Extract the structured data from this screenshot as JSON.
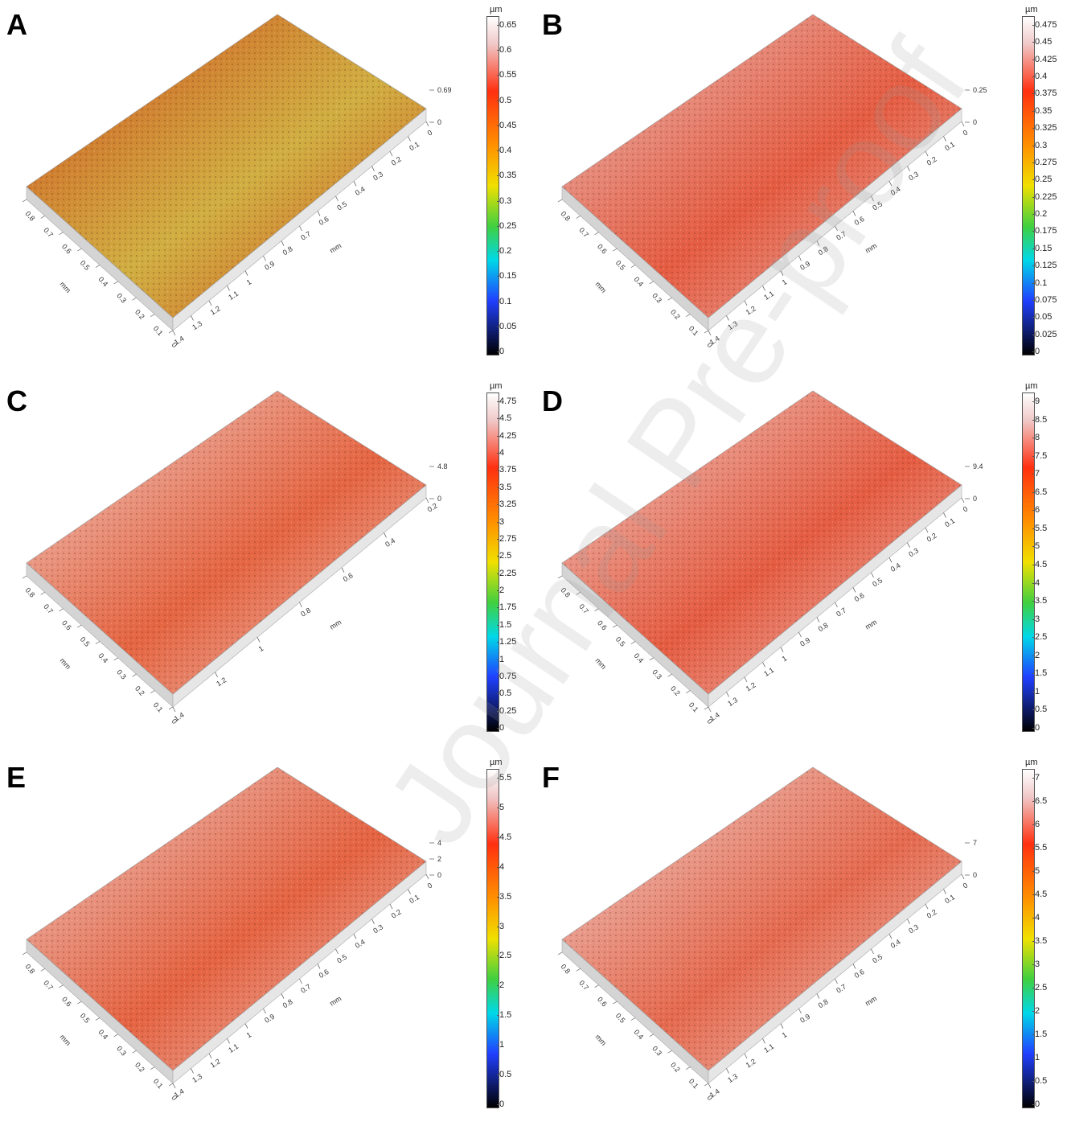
{
  "panels": [
    {
      "letter": "A",
      "unit": "µm",
      "colorbar_ticks": [
        "0.65",
        "0.6",
        "0.55",
        "0.5",
        "0.45",
        "0.4",
        "0.35",
        "0.3",
        "0.25",
        "0.2",
        "0.15",
        "0.1",
        "0.05",
        "0"
      ],
      "z_labels": [
        "0.69",
        "0"
      ],
      "x_ticks": [
        "0.8",
        "0.7",
        "0.6",
        "0.5",
        "0.4",
        "0.3",
        "0.2",
        "0.1",
        "0"
      ],
      "y_ticks": [
        "1.4",
        "1.3",
        "1.2",
        "1.1",
        "1",
        "0.9",
        "0.8",
        "0.7",
        "0.6",
        "0.5",
        "0.4",
        "0.3",
        "0.2",
        "0.1",
        "0"
      ],
      "x_unit": "mm",
      "y_unit": "mm",
      "surface_color": "#d0451c",
      "accent_color": "#c8a020"
    },
    {
      "letter": "B",
      "unit": "µm",
      "colorbar_ticks": [
        "0.475",
        "0.45",
        "0.425",
        "0.4",
        "0.375",
        "0.35",
        "0.325",
        "0.3",
        "0.275",
        "0.25",
        "0.225",
        "0.2",
        "0.175",
        "0.15",
        "0.125",
        "0.1",
        "0.075",
        "0.05",
        "0.025",
        "0"
      ],
      "z_labels": [
        "0.25",
        "0"
      ],
      "x_ticks": [
        "0.8",
        "0.7",
        "0.6",
        "0.5",
        "0.4",
        "0.3",
        "0.2",
        "0.1",
        "0"
      ],
      "y_ticks": [
        "1.4",
        "1.3",
        "1.2",
        "1.1",
        "1",
        "0.9",
        "0.8",
        "0.7",
        "0.6",
        "0.5",
        "0.4",
        "0.3",
        "0.2",
        "0.1",
        "0"
      ],
      "x_unit": "mm",
      "y_unit": "mm",
      "surface_color": "#e8c8c8",
      "accent_color": "#e04020"
    },
    {
      "letter": "C",
      "unit": "µm",
      "colorbar_ticks": [
        "4.75",
        "4.5",
        "4.25",
        "4",
        "3.75",
        "3.5",
        "3.25",
        "3",
        "2.75",
        "2.5",
        "2.25",
        "2",
        "1.75",
        "1.5",
        "1.25",
        "1",
        "0.75",
        "0.5",
        "0.25",
        "0"
      ],
      "z_labels": [
        "4.8",
        "0"
      ],
      "x_ticks": [
        "0.8",
        "0.7",
        "0.6",
        "0.5",
        "0.4",
        "0.3",
        "0.2",
        "0.1",
        "0"
      ],
      "y_ticks": [
        "1.4",
        "1.2",
        "1",
        "0.8",
        "0.6",
        "0.4",
        "0.2"
      ],
      "x_unit": "mm",
      "y_unit": "mm",
      "surface_color": "#efdada",
      "accent_color": "#e04a20"
    },
    {
      "letter": "D",
      "unit": "µm",
      "colorbar_ticks": [
        "9",
        "8.5",
        "8",
        "7.5",
        "7",
        "6.5",
        "6",
        "5.5",
        "5",
        "4.5",
        "4",
        "3.5",
        "3",
        "2.5",
        "2",
        "1.5",
        "1",
        "0.5",
        "0"
      ],
      "z_labels": [
        "9.4",
        "0"
      ],
      "x_ticks": [
        "0.8",
        "0.7",
        "0.6",
        "0.5",
        "0.4",
        "0.3",
        "0.2",
        "0.1",
        "0"
      ],
      "y_ticks": [
        "1.4",
        "1.3",
        "1.2",
        "1.1",
        "1",
        "0.9",
        "0.8",
        "0.7",
        "0.6",
        "0.5",
        "0.4",
        "0.3",
        "0.2",
        "0.1",
        "0"
      ],
      "x_unit": "mm",
      "y_unit": "mm",
      "surface_color": "#efdada",
      "accent_color": "#e04020"
    },
    {
      "letter": "E",
      "unit": "µm",
      "colorbar_ticks": [
        "5.5",
        "5",
        "4.5",
        "4",
        "3.5",
        "3",
        "2.5",
        "2",
        "1.5",
        "1",
        "0.5",
        "0"
      ],
      "z_labels": [
        "4",
        "2",
        "0"
      ],
      "x_ticks": [
        "0.8",
        "0.7",
        "0.6",
        "0.5",
        "0.4",
        "0.3",
        "0.2",
        "0.1",
        "0"
      ],
      "y_ticks": [
        "1.4",
        "1.3",
        "1.2",
        "1.1",
        "1",
        "0.9",
        "0.8",
        "0.7",
        "0.6",
        "0.5",
        "0.4",
        "0.3",
        "0.2",
        "0.1",
        "0"
      ],
      "x_unit": "mm",
      "y_unit": "mm",
      "surface_color": "#ecd6d6",
      "accent_color": "#e04820"
    },
    {
      "letter": "F",
      "unit": "µm",
      "colorbar_ticks": [
        "7",
        "6.5",
        "6",
        "5.5",
        "5",
        "4.5",
        "4",
        "3.5",
        "3",
        "2.5",
        "2",
        "1.5",
        "1",
        "0.5",
        "0"
      ],
      "z_labels": [
        "7",
        "0"
      ],
      "x_ticks": [
        "0.8",
        "0.7",
        "0.6",
        "0.5",
        "0.4",
        "0.3",
        "0.2",
        "0.1",
        "0"
      ],
      "y_ticks": [
        "1.4",
        "1.3",
        "1.2",
        "1.1",
        "1",
        "0.9",
        "0.8",
        "0.7",
        "0.6",
        "0.5",
        "0.4",
        "0.3",
        "0.2",
        "0.1",
        "0"
      ],
      "x_unit": "mm",
      "y_unit": "mm",
      "surface_color": "#efdcdc",
      "accent_color": "#e05030"
    }
  ],
  "watermark": "Journal Pre-proof"
}
